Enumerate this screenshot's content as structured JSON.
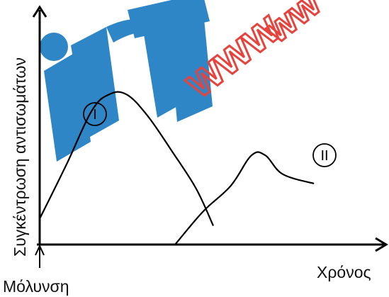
{
  "watermark": {
    "letters": "inT",
    "text": "www",
    "blue": "#2f86c6",
    "red": "#e8423c"
  },
  "axes": {
    "ylabel": "Συγκέντρωση αντισωμάτων",
    "xlabel": "Χρόνος",
    "infection_label": "Μόλυνση",
    "color": "#000000"
  },
  "chart_data": {
    "type": "line",
    "title": "",
    "xlabel": "Χρόνος",
    "ylabel": "Συγκέντρωση αντισωμάτων",
    "xlim": [
      0,
      100
    ],
    "ylim": [
      0,
      100
    ],
    "grid": false,
    "series": [
      {
        "name": "I",
        "points": [
          [
            0,
            11
          ],
          [
            8,
            35
          ],
          [
            15,
            57
          ],
          [
            20,
            64
          ],
          [
            25,
            64
          ],
          [
            31,
            55
          ],
          [
            38,
            40
          ],
          [
            45,
            24
          ],
          [
            50,
            8
          ]
        ]
      },
      {
        "name": "II",
        "points": [
          [
            39,
            0
          ],
          [
            47,
            14
          ],
          [
            55,
            25
          ],
          [
            61,
            38
          ],
          [
            65,
            38
          ],
          [
            70,
            30
          ],
          [
            79,
            26
          ]
        ]
      }
    ]
  }
}
